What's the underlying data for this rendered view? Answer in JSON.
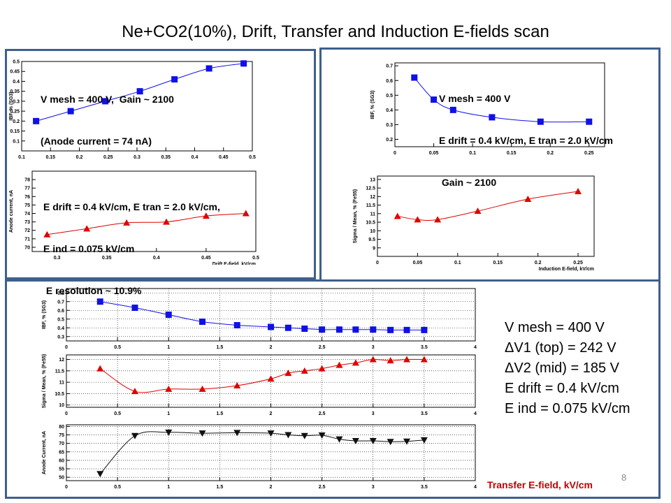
{
  "slide": {
    "title": "Ne+CO2(10%), Drift, Transfer and Induction E-fields scan",
    "page_number": "8",
    "frame_color": "#3f5f8c"
  },
  "annotations": {
    "drift_top": [
      "V mesh = 400 V,  Gain ~ 2100",
      "(Anode current = 74 nA)"
    ],
    "drift_bottom": [
      "E drift = 0.4 kV/cm, E tran = 2.0 kV/cm,",
      "E ind = 0.075 kV/cm",
      " E resolution ~ 10.9%"
    ],
    "induction_top": [
      "V mesh = 400 V",
      "E drift = 0.4 kV/cm, E tran = 2.0 kV/cm",
      " Gain ~ 2100"
    ],
    "transfer_side": [
      "V mesh = 400 V",
      "ΔV1 (top) = 242 V",
      "ΔV2 (mid) = 185 V",
      "E drift = 0.4 kV/cm",
      "E ind = 0.075 kV/cm"
    ],
    "transfer_xlabel": "Transfer E-field, kV/cm"
  },
  "chart_data": [
    {
      "id": "drift-ibf",
      "type": "scatter",
      "xlabel": "",
      "ylabel": "IBF, % (SG3)",
      "xlim": [
        0.1,
        0.5
      ],
      "ylim": [
        0.05,
        0.5
      ],
      "xticks": [
        0.1,
        0.15,
        0.2,
        0.25,
        0.3,
        0.35,
        0.4,
        0.45,
        0.5
      ],
      "xtick_labels": [
        "0.1",
        "0.15",
        "0.2",
        "0.25",
        "0.3",
        "0.35",
        "0.4",
        "0.45",
        "0.5"
      ],
      "yticks": [
        0.1,
        0.15,
        0.2,
        0.25,
        0.3,
        0.35,
        0.4,
        0.45,
        0.5
      ],
      "ytick_labels": [
        "0.1",
        "0.15",
        "0.2",
        "0.25",
        "0.3",
        "0.35",
        "0.4",
        "0.45",
        "0.5"
      ],
      "grid": false,
      "marker": "square",
      "color": "#1010e8",
      "line_color": "#1010e8",
      "x": [
        0.125,
        0.185,
        0.245,
        0.305,
        0.365,
        0.425,
        0.485
      ],
      "y": [
        0.2,
        0.25,
        0.3,
        0.35,
        0.41,
        0.465,
        0.49
      ]
    },
    {
      "id": "drift-current",
      "type": "scatter",
      "xlabel": "Drift E-field, kV/cm",
      "ylabel": "Anode current, nA",
      "xlim": [
        0.275,
        0.5
      ],
      "ylim": [
        69.5,
        79
      ],
      "xticks": [
        0.3,
        0.35,
        0.4,
        0.45,
        0.5
      ],
      "xtick_labels": [
        "0.3",
        "0.35",
        "0.4",
        "0.45",
        "0.5"
      ],
      "yticks": [
        70,
        71,
        72,
        73,
        74,
        75,
        76,
        77,
        78
      ],
      "ytick_labels": [
        "70",
        "71",
        "72",
        "73",
        "74",
        "75",
        "76",
        "77",
        "78"
      ],
      "grid": false,
      "marker": "triangle-up",
      "color": "#e00000",
      "line_color": "#e00000",
      "x": [
        0.29,
        0.33,
        0.37,
        0.41,
        0.45,
        0.49
      ],
      "y": [
        71.5,
        72.2,
        72.9,
        73.0,
        73.7,
        74.0
      ]
    },
    {
      "id": "induction-ibf",
      "type": "scatter",
      "xlabel": "",
      "ylabel": "IBF, % (SG3)",
      "xlim": [
        0,
        0.27
      ],
      "ylim": [
        0.15,
        0.72
      ],
      "xticks": [
        0,
        0.05,
        0.1,
        0.15,
        0.2,
        0.25
      ],
      "xtick_labels": [
        "0",
        "0.05",
        "0.1",
        "0.15",
        "0.2",
        "0.25"
      ],
      "yticks": [
        0.2,
        0.3,
        0.4,
        0.5,
        0.6,
        0.7
      ],
      "ytick_labels": [
        "0.2",
        "0.3",
        "0.4",
        "0.5",
        "0.6",
        "0.7"
      ],
      "grid": false,
      "marker": "square",
      "color": "#1010e8",
      "line_color": "#1010e8",
      "x": [
        0.025,
        0.05,
        0.075,
        0.125,
        0.1875,
        0.25
      ],
      "y": [
        0.62,
        0.47,
        0.4,
        0.35,
        0.32,
        0.32
      ]
    },
    {
      "id": "induction-resolution",
      "type": "scatter",
      "xlabel": "Induction E-field, kV/cm",
      "ylabel": "Sigma / Mean, % (Fe55)",
      "xlim": [
        0,
        0.27
      ],
      "ylim": [
        8.5,
        13.2
      ],
      "xticks": [
        0,
        0.05,
        0.1,
        0.15,
        0.2,
        0.25
      ],
      "xtick_labels": [
        "0",
        "0.05",
        "0.1",
        "0.15",
        "0.2",
        "0.25"
      ],
      "yticks": [
        9,
        9.5,
        10,
        10.5,
        11,
        11.5,
        12,
        12.5,
        13
      ],
      "ytick_labels": [
        "9",
        "9.5",
        "10",
        "10.5",
        "11",
        "11.5",
        "12",
        "12.5",
        "13"
      ],
      "grid": false,
      "marker": "triangle-up",
      "color": "#e00000",
      "line_color": "#e00000",
      "x": [
        0.025,
        0.05,
        0.075,
        0.125,
        0.1875,
        0.25
      ],
      "y": [
        10.85,
        10.65,
        10.65,
        11.15,
        11.85,
        12.3
      ]
    },
    {
      "id": "transfer-ibf",
      "type": "scatter",
      "xlabel": "",
      "ylabel": "IBF, % (SG3)",
      "xlim": [
        0,
        4
      ],
      "ylim": [
        0.25,
        0.85
      ],
      "xticks": [
        0,
        0.5,
        1,
        1.5,
        2,
        2.5,
        3,
        3.5,
        4
      ],
      "xtick_labels": [
        "0",
        "0.5",
        "1",
        "1.5",
        "2",
        "2.5",
        "3",
        "3.5",
        "4"
      ],
      "yticks": [
        0.3,
        0.4,
        0.5,
        0.6,
        0.7,
        0.8
      ],
      "ytick_labels": [
        "0.3",
        "0.4",
        "0.5",
        "0.6",
        "0.7",
        "0.8"
      ],
      "grid": true,
      "marker": "square",
      "color": "#1010e8",
      "line_color": "#1010e8",
      "x": [
        0.33,
        0.67,
        1.0,
        1.33,
        1.67,
        2.0,
        2.17,
        2.33,
        2.5,
        2.67,
        2.83,
        3.0,
        3.17,
        3.33,
        3.5
      ],
      "y": [
        0.7,
        0.63,
        0.55,
        0.47,
        0.43,
        0.41,
        0.4,
        0.39,
        0.38,
        0.38,
        0.38,
        0.38,
        0.375,
        0.375,
        0.375
      ]
    },
    {
      "id": "transfer-resolution",
      "type": "scatter",
      "xlabel": "",
      "ylabel": "Sigma / Mean, % (Fe55)",
      "xlim": [
        0,
        4
      ],
      "ylim": [
        9.9,
        12.2
      ],
      "xticks": [
        0,
        0.5,
        1,
        1.5,
        2,
        2.5,
        3,
        3.5,
        4
      ],
      "xtick_labels": [
        "0",
        "0.5",
        "1",
        "1.5",
        "2",
        "2.5",
        "3",
        "3.5",
        "4"
      ],
      "yticks": [
        10,
        10.5,
        11,
        11.5,
        12
      ],
      "ytick_labels": [
        "10",
        "10.5",
        "11",
        "11.5",
        "12"
      ],
      "grid": true,
      "marker": "triangle-up",
      "color": "#e00000",
      "line_color": "#e00000",
      "x": [
        0.33,
        0.67,
        1.0,
        1.33,
        1.67,
        2.0,
        2.17,
        2.33,
        2.5,
        2.67,
        2.83,
        3.0,
        3.17,
        3.33,
        3.5
      ],
      "y": [
        11.6,
        10.6,
        10.7,
        10.7,
        10.85,
        11.15,
        11.4,
        11.5,
        11.6,
        11.75,
        11.85,
        12.0,
        11.95,
        12.0,
        12.0
      ]
    },
    {
      "id": "transfer-current",
      "type": "scatter",
      "xlabel": "Transfer E-field, kV/cm",
      "ylabel": "Anode Current, nA",
      "xlim": [
        0,
        4
      ],
      "ylim": [
        48,
        81
      ],
      "xticks": [
        0,
        0.5,
        1,
        1.5,
        2,
        2.5,
        3,
        3.5,
        4
      ],
      "xtick_labels": [
        "0",
        "0.5",
        "1",
        "1.5",
        "2",
        "2.5",
        "3",
        "3.5",
        "4"
      ],
      "yticks": [
        50,
        55,
        60,
        65,
        70,
        75,
        80
      ],
      "ytick_labels": [
        "50",
        "55",
        "60",
        "65",
        "70",
        "75",
        "80"
      ],
      "grid": true,
      "marker": "triangle-down",
      "color": "#111111",
      "line_color": "#111111",
      "x": [
        0.33,
        0.67,
        1.0,
        1.33,
        1.67,
        2.0,
        2.17,
        2.33,
        2.5,
        2.67,
        2.83,
        3.0,
        3.17,
        3.33,
        3.5
      ],
      "y": [
        52,
        74.5,
        76.5,
        76,
        76.3,
        76,
        75,
        74.5,
        74.8,
        72.5,
        71.5,
        71.5,
        71,
        71.2,
        72
      ]
    }
  ]
}
